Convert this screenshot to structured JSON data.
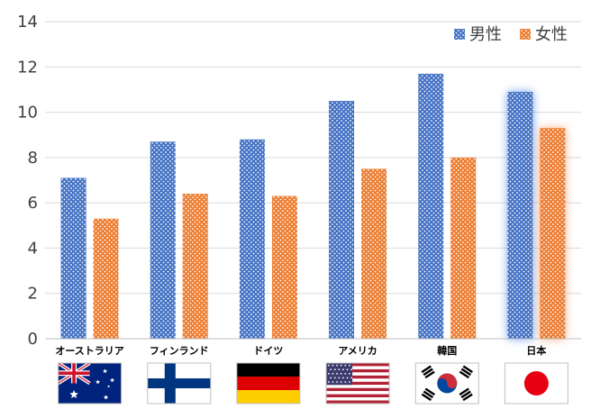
{
  "chart_data": {
    "type": "bar",
    "categories": [
      "オーストラリア",
      "フィンランド",
      "ドイツ",
      "アメリカ",
      "韓国",
      "日本"
    ],
    "series": [
      {
        "name": "男性",
        "values": [
          7.1,
          8.7,
          8.8,
          10.5,
          11.7,
          10.9
        ],
        "color": "#4472C4"
      },
      {
        "name": "女性",
        "values": [
          5.3,
          6.4,
          6.3,
          7.5,
          8.0,
          9.3
        ],
        "color": "#ED7D31"
      }
    ],
    "ylim": [
      0,
      14
    ],
    "yticks": [
      "0",
      "2",
      "4",
      "6",
      "8",
      "10",
      "12",
      "14"
    ],
    "grid": true,
    "legend_position": "top-right",
    "highlighted_category": "日本",
    "flags": [
      "australia-flag",
      "finland-flag",
      "germany-flag",
      "usa-flag",
      "korea-flag",
      "japan-flag"
    ]
  }
}
